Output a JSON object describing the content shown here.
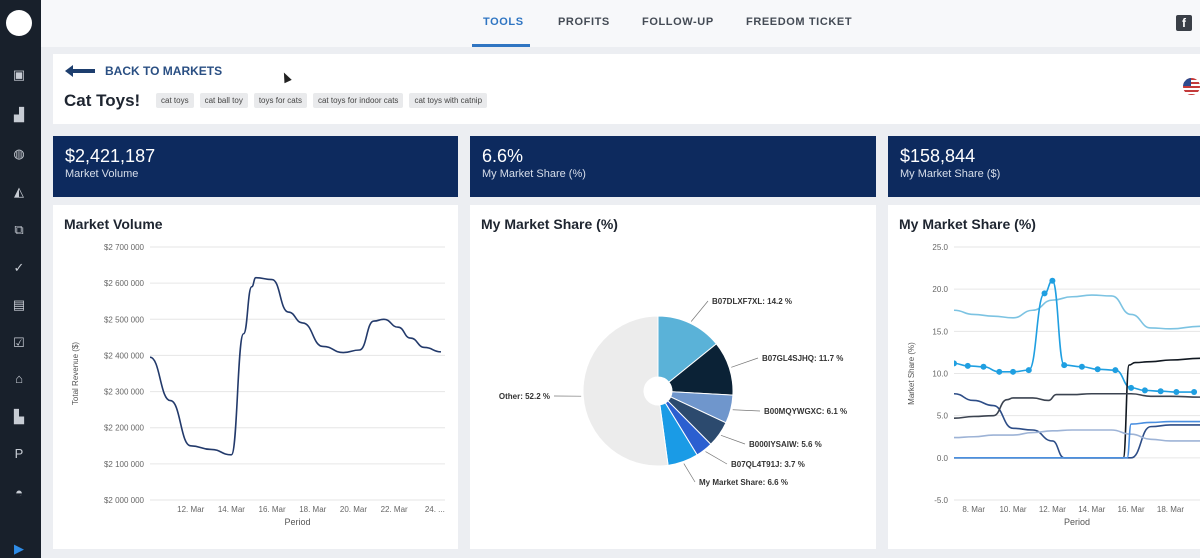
{
  "nav": {
    "tabs": [
      {
        "label": "TOOLS",
        "active": true
      },
      {
        "label": "PROFITS",
        "active": false
      },
      {
        "label": "FOLLOW-UP",
        "active": false
      },
      {
        "label": "FREEDOM TICKET",
        "active": false
      }
    ],
    "facebook_glyph": "f"
  },
  "sidebar": {
    "icons": [
      "box-icon",
      "bar-chart-icon",
      "globe-icon",
      "area-chart-icon",
      "resize-icon",
      "check-circle-icon",
      "document-icon",
      "checklist-icon",
      "store-icon",
      "truck-icon",
      "parking-icon",
      "lamp-icon",
      "play-icon"
    ]
  },
  "header": {
    "back_label": "BACK TO MARKETS",
    "title": "Cat Toys!",
    "keywords": [
      "cat toys",
      "cat ball toy",
      "toys for cats",
      "cat toys for indoor cats",
      "cat toys with catnip"
    ]
  },
  "kpis": [
    {
      "value": "$2,421,187",
      "label": "Market Volume"
    },
    {
      "value": "6.6%",
      "label": "My Market Share (%)"
    },
    {
      "value": "$158,844",
      "label": "My Market Share ($)"
    }
  ],
  "chart_data": [
    {
      "type": "line",
      "title": "Market Volume",
      "xlabel": "Period",
      "ylabel": "Total Revenue ($)",
      "ylim": [
        2000000,
        2700000
      ],
      "yticks": [
        2000000,
        2100000,
        2200000,
        2300000,
        2400000,
        2500000,
        2600000,
        2700000
      ],
      "ytick_labels": [
        "$2 000 000",
        "$2 100 000",
        "$2 200 000",
        "$2 300 000",
        "$2 400 000",
        "$2 500 000",
        "$2 600 000",
        "$2 700 000"
      ],
      "xlim": [
        10,
        24.5
      ],
      "xticks": [
        12,
        14,
        16,
        18,
        20,
        22,
        24
      ],
      "xtick_labels": [
        "12. Mar",
        "14. Mar",
        "16. Mar",
        "18. Mar",
        "20. Mar",
        "22. Mar",
        "24. ..."
      ],
      "series": [
        {
          "name": "Market Volume",
          "color": "#233a6b",
          "x": [
            10,
            11,
            12,
            13,
            14,
            14.6,
            15,
            15.2,
            16,
            16.8,
            17.5,
            18.5,
            19.5,
            20.3,
            21,
            21.5,
            22.2,
            22.8,
            23.5,
            24.3
          ],
          "y": [
            2395000,
            2275000,
            2150000,
            2140000,
            2125000,
            2460000,
            2590000,
            2615000,
            2610000,
            2520000,
            2490000,
            2425000,
            2408000,
            2415000,
            2495000,
            2500000,
            2478000,
            2448000,
            2422000,
            2410000
          ]
        }
      ]
    },
    {
      "type": "pie",
      "title": "My Market Share (%)",
      "slices": [
        {
          "label": "B07DLXF7XL: 14.2 %",
          "value": 14.2,
          "color": "#5ab2d8"
        },
        {
          "label": "B07GL4SJHQ: 11.7 %",
          "value": 11.7,
          "color": "#0b2236"
        },
        {
          "label": "B00MQYWGXC: 6.1 %",
          "value": 6.1,
          "color": "#6f96cc"
        },
        {
          "label": "B000IYSAIW: 5.6 %",
          "value": 5.6,
          "color": "#2c4a6e"
        },
        {
          "label": "B07QL4T91J: 3.7 %",
          "value": 3.7,
          "color": "#2b5fd0"
        },
        {
          "label": "My Market Share: 6.6 %",
          "value": 6.6,
          "color": "#1a9be6"
        },
        {
          "label": "Other: 52.2 %",
          "value": 52.2,
          "color": "#ececec"
        }
      ]
    },
    {
      "type": "line",
      "title": "My Market Share (%)",
      "xlabel": "Period",
      "ylabel": "Market Share (%)",
      "ylim": [
        -5,
        25
      ],
      "yticks": [
        -5,
        0,
        5,
        10,
        15,
        20,
        25
      ],
      "ytick_labels": [
        "-5.0",
        "0.0",
        "5.0",
        "10.0",
        "15.0",
        "20.0",
        "25.0"
      ],
      "xlim": [
        7,
        19.5
      ],
      "xticks": [
        8,
        10,
        12,
        14,
        16,
        18
      ],
      "xtick_labels": [
        "8. Mar",
        "10. Mar",
        "12. Mar",
        "14. Mar",
        "16. Mar",
        "18. Mar"
      ],
      "series": [
        {
          "name": "light",
          "color": "#7cc3e2",
          "markers": false,
          "x": [
            7,
            8,
            9,
            10,
            11,
            12,
            13,
            14,
            15,
            16,
            17,
            18,
            19.5
          ],
          "y": [
            17.5,
            17.0,
            16.8,
            16.6,
            17.5,
            18.7,
            19.1,
            19.3,
            19.2,
            17.0,
            15.4,
            15.3,
            15.6
          ]
        },
        {
          "name": "bright",
          "color": "#1f9fe1",
          "markers": true,
          "x": [
            7,
            7.7,
            8.5,
            9.3,
            10,
            10.8,
            11.6,
            12,
            12.6,
            13.5,
            14.3,
            15.2,
            16,
            16.7,
            17.5,
            18.3,
            19.2
          ],
          "y": [
            11.2,
            10.9,
            10.8,
            10.2,
            10.2,
            10.4,
            19.5,
            21.0,
            11.0,
            10.8,
            10.5,
            10.4,
            8.3,
            8.0,
            7.9,
            7.8,
            7.8
          ]
        },
        {
          "name": "navy",
          "color": "#2d4d87",
          "markers": false,
          "x": [
            7,
            8,
            9,
            10,
            11,
            12,
            12.6,
            13.2,
            14,
            15,
            15.5,
            16,
            17,
            18,
            19.5
          ],
          "y": [
            7.6,
            6.8,
            6.2,
            3.5,
            3.3,
            2.0,
            0,
            0,
            0,
            0,
            0,
            0,
            3.7,
            3.9,
            3.9
          ]
        },
        {
          "name": "black",
          "color": "#111821",
          "markers": false,
          "x": [
            7,
            8,
            9,
            10,
            11,
            11.4,
            12,
            13,
            14,
            15,
            15.6,
            15.9,
            16.2,
            17,
            18,
            19.5
          ],
          "y": [
            0,
            0,
            0,
            0,
            0,
            0,
            0,
            0,
            0,
            0,
            0,
            11.0,
            11.3,
            11.4,
            11.6,
            11.8
          ]
        },
        {
          "name": "gray",
          "color": "#3b4350",
          "markers": false,
          "x": [
            7,
            8,
            9,
            9.7,
            10,
            11,
            11.8,
            12.2,
            13,
            14,
            15,
            15.7,
            16,
            17,
            18,
            19.5
          ],
          "y": [
            4.7,
            4.9,
            5.0,
            6.9,
            7.1,
            7.1,
            6.8,
            7.5,
            7.5,
            7.6,
            7.6,
            7.6,
            7.6,
            7.3,
            7.3,
            7.2
          ]
        },
        {
          "name": "pale-blue",
          "color": "#9db3d6",
          "markers": false,
          "x": [
            7,
            8,
            9,
            10,
            11,
            12,
            13,
            14,
            15,
            16,
            17,
            18,
            19.5
          ],
          "y": [
            2.4,
            2.5,
            2.7,
            2.7,
            3.0,
            3.2,
            3.3,
            3.3,
            3.3,
            2.8,
            2.2,
            2.0,
            2.0
          ]
        },
        {
          "name": "mid-blue",
          "color": "#4a8fe0",
          "markers": false,
          "x": [
            7,
            8,
            9,
            10,
            11,
            12,
            13,
            14,
            15,
            15.4,
            15.8,
            16,
            17,
            18,
            19.5
          ],
          "y": [
            0,
            0,
            0,
            0,
            0,
            0,
            0,
            0,
            0,
            0,
            0,
            4.0,
            4.2,
            4.3,
            4.3
          ]
        }
      ]
    }
  ]
}
